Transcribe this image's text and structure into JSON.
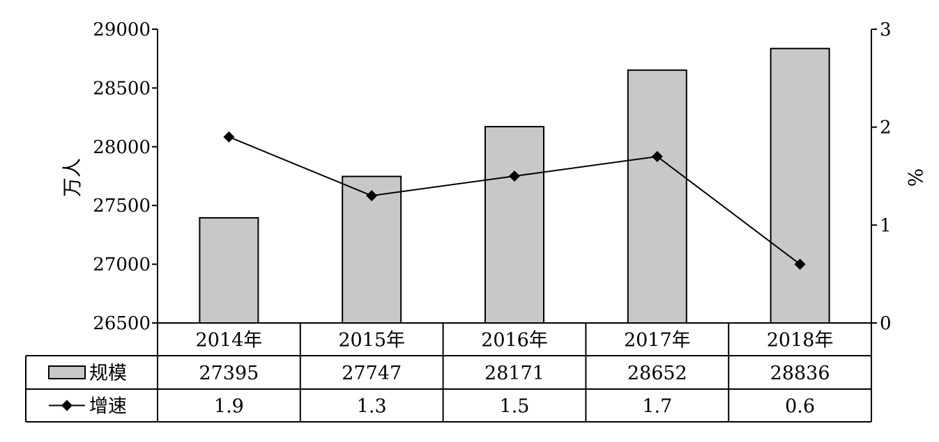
{
  "chart_data": {
    "type": "bar",
    "categories": [
      "2014年",
      "2015年",
      "2016年",
      "2017年",
      "2018年"
    ],
    "series": [
      {
        "name": "规模",
        "kind": "bar",
        "axis": "left",
        "values": [
          27395,
          27747,
          28171,
          28652,
          28836
        ],
        "color": "#c8c8c8"
      },
      {
        "name": "增速",
        "kind": "line",
        "axis": "right",
        "values": [
          1.9,
          1.3,
          1.5,
          1.7,
          0.6
        ],
        "color": "#000000",
        "marker": "diamond"
      }
    ],
    "title": "",
    "ylabel_left": "万人",
    "ylabel_right": "%",
    "ylim_left": [
      26500,
      29000
    ],
    "yticks_left": [
      "26500",
      "27000",
      "27500",
      "28000",
      "28500",
      "29000"
    ],
    "ylim_right": [
      0,
      3
    ],
    "yticks_right": [
      "0",
      "1",
      "2",
      "3"
    ],
    "data_table": {
      "rows": [
        {
          "label": "规模",
          "cells": [
            "27395",
            "27747",
            "28171",
            "28652",
            "28836"
          ]
        },
        {
          "label": "增速",
          "cells": [
            "1.9",
            "1.3",
            "1.5",
            "1.7",
            "0.6"
          ]
        }
      ]
    },
    "grid": false
  }
}
